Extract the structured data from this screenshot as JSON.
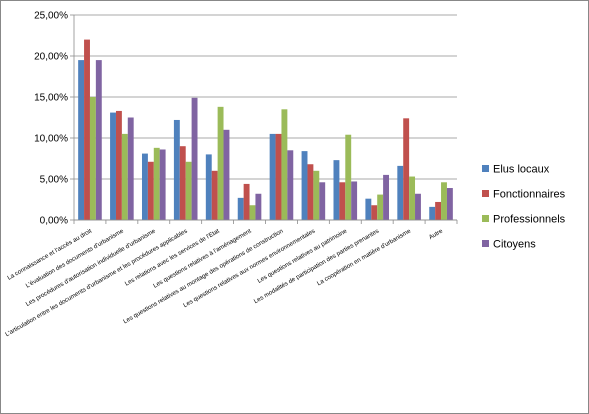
{
  "chart_data": {
    "type": "bar",
    "categories": [
      "La connaissance et l'accès au droit",
      "L'évaluation des documents d'urbanisme",
      "Les procédures d'autorisation individuelle d'urbanisme",
      "L'articulation entre les documents d'urbanisme et les procédures applicables",
      "Les relations avec les services de l'Etat",
      "Les questions relatives à l'aménagement",
      "Les questions relatives au montage des opérations de construction",
      "Les questions relatives aux normes environnementales",
      "Les questions relatives au patrimoine",
      "Les modalités de participation des parties prenantes",
      "La coopération en matière d'urbanisme",
      "Autre"
    ],
    "series": [
      {
        "name": "Elus locaux",
        "color": "#4F81BD",
        "values": [
          19.5,
          13.1,
          8.1,
          12.2,
          8.0,
          2.7,
          10.5,
          8.4,
          7.3,
          2.6,
          6.6,
          1.6
        ]
      },
      {
        "name": "Fonctionnaires",
        "color": "#C0504D",
        "values": [
          22.0,
          13.3,
          7.1,
          9.0,
          6.0,
          4.4,
          10.5,
          6.8,
          4.6,
          1.8,
          12.4,
          2.2
        ]
      },
      {
        "name": "Professionnels",
        "color": "#9BBB59",
        "values": [
          15.0,
          10.5,
          8.8,
          7.1,
          13.8,
          1.8,
          13.5,
          6.0,
          10.4,
          3.1,
          5.3,
          4.6
        ]
      },
      {
        "name": "Citoyens",
        "color": "#8064A2",
        "values": [
          19.5,
          12.5,
          8.6,
          14.9,
          11.0,
          3.2,
          8.5,
          4.6,
          4.7,
          5.5,
          3.2,
          3.9
        ]
      }
    ],
    "yticks": [
      "0,00%",
      "5,00%",
      "10,00%",
      "15,00%",
      "20,00%",
      "25,00%"
    ],
    "ylim": [
      0,
      25
    ],
    "grid": true,
    "legend_position": "right"
  }
}
